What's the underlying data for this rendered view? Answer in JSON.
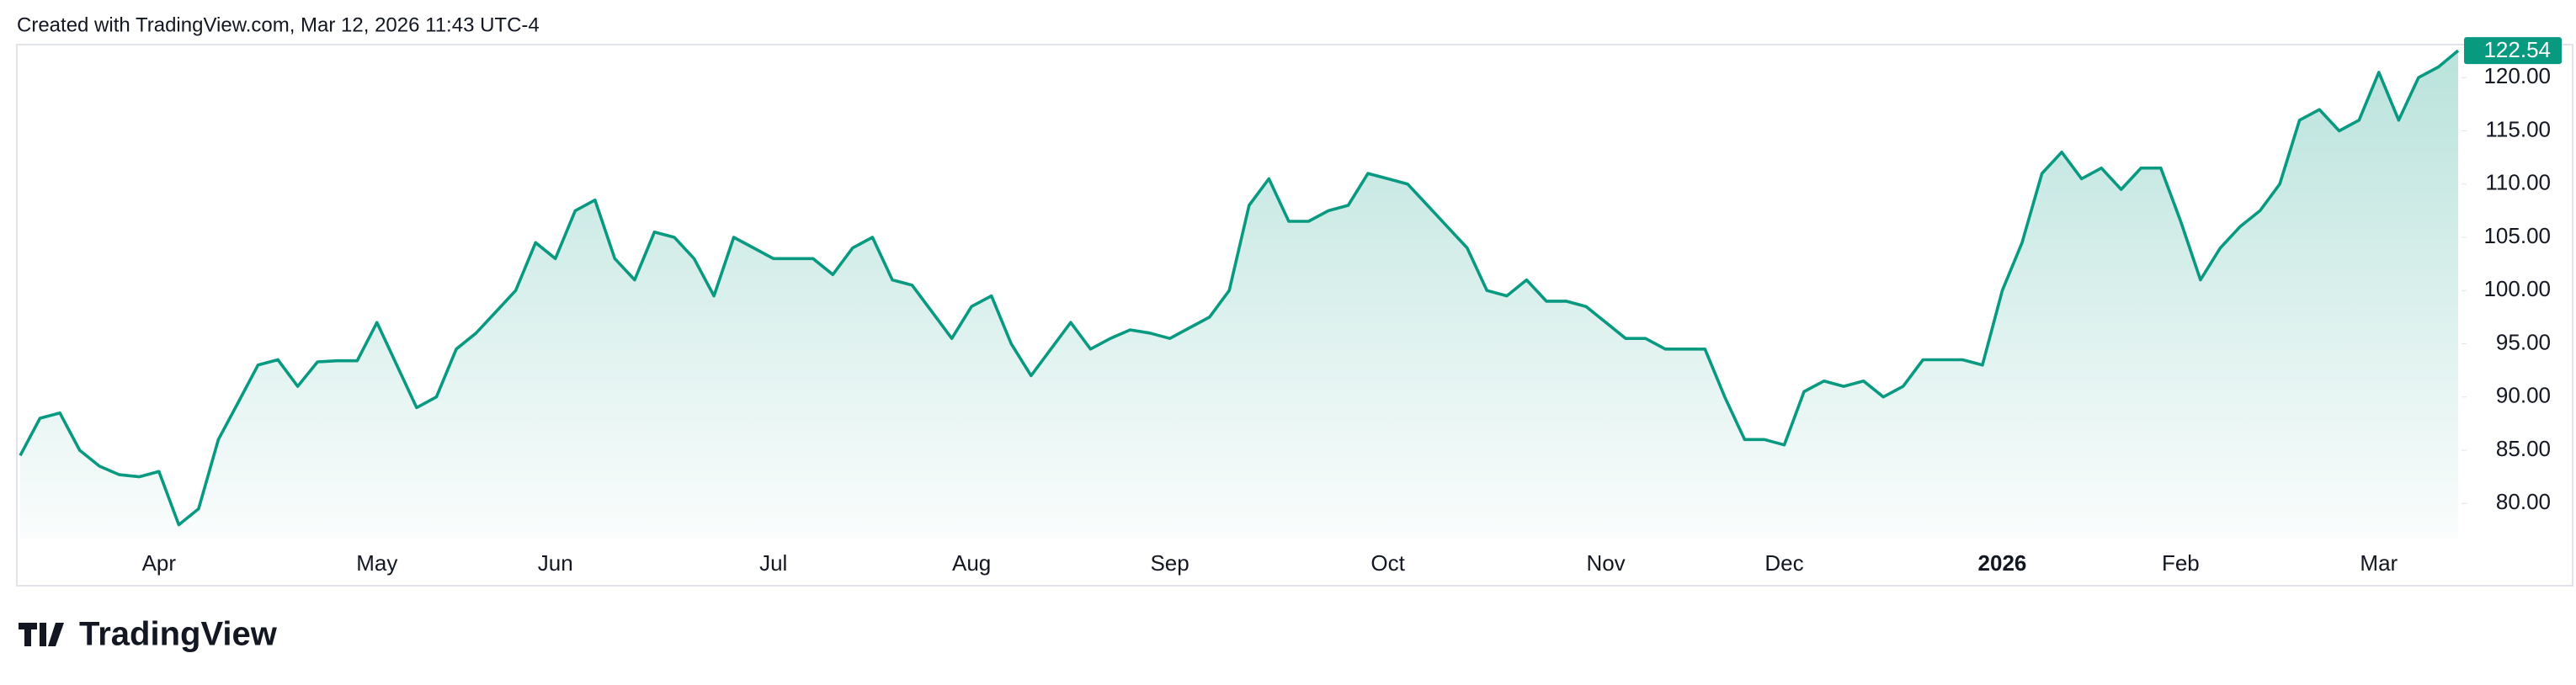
{
  "header": {
    "text": "Created with TradingView.com, Mar 12, 2026 11:43 UTC-4"
  },
  "footer": {
    "brand": "TradingView"
  },
  "chart_data": {
    "type": "area",
    "color": "#089981",
    "grid": false,
    "categories": [
      null,
      null,
      null,
      null,
      null,
      null,
      null,
      "Apr",
      null,
      null,
      null,
      null,
      null,
      null,
      null,
      null,
      null,
      null,
      "May",
      null,
      null,
      null,
      null,
      null,
      null,
      null,
      null,
      "Jun",
      null,
      null,
      null,
      null,
      null,
      null,
      null,
      null,
      null,
      null,
      "Jul",
      null,
      null,
      null,
      null,
      null,
      null,
      null,
      null,
      null,
      "Aug",
      null,
      null,
      null,
      null,
      null,
      null,
      null,
      null,
      null,
      "Sep",
      null,
      null,
      null,
      null,
      null,
      null,
      null,
      null,
      null,
      null,
      "Oct",
      null,
      null,
      null,
      null,
      null,
      null,
      null,
      null,
      null,
      null,
      "Nov",
      null,
      null,
      null,
      null,
      null,
      null,
      null,
      null,
      "Dec",
      null,
      null,
      null,
      null,
      null,
      null,
      null,
      null,
      null,
      null,
      "2026",
      null,
      null,
      null,
      null,
      null,
      null,
      null,
      null,
      "Feb",
      null,
      null,
      null,
      null,
      null,
      null,
      null,
      null,
      null,
      "Mar",
      null,
      null,
      null,
      null
    ],
    "values": [
      84.5,
      88,
      88.5,
      85,
      83.5,
      82.7,
      82.5,
      83,
      78,
      79.5,
      86,
      89.5,
      93,
      93.5,
      91,
      93.3,
      93.4,
      93.4,
      97,
      93,
      89,
      90,
      94.5,
      96,
      98,
      100,
      104.5,
      103,
      107.5,
      108.5,
      103,
      101,
      105.5,
      105,
      103,
      99.5,
      105,
      104,
      103,
      103,
      103,
      101.5,
      104,
      105,
      101,
      100.5,
      98,
      95.5,
      98.5,
      99.5,
      95,
      92,
      94.5,
      97,
      94.5,
      95.5,
      96.3,
      96,
      95.5,
      96.5,
      97.5,
      100,
      108,
      110.5,
      106.5,
      106.5,
      107.5,
      108,
      111,
      110.5,
      110,
      108,
      106,
      104,
      100,
      99.5,
      101,
      99,
      99,
      98.5,
      97,
      95.5,
      95.5,
      94.5,
      94.5,
      94.5,
      90,
      86,
      86,
      85.5,
      90.5,
      91.5,
      91,
      91.5,
      90,
      91,
      93.5,
      93.5,
      93.5,
      93,
      100,
      104.5,
      111,
      113,
      110.5,
      111.5,
      109.5,
      111.5,
      111.5,
      106.5,
      101,
      104,
      106,
      107.5,
      110,
      116,
      117,
      115,
      116,
      120.5,
      116,
      120,
      121,
      122.54
    ],
    "ylim": [
      76.7,
      123.1
    ],
    "yticks": [
      {
        "value": 80,
        "label": "80.00"
      },
      {
        "value": 85,
        "label": "85.00"
      },
      {
        "value": 90,
        "label": "90.00"
      },
      {
        "value": 95,
        "label": "95.00"
      },
      {
        "value": 100,
        "label": "100.00"
      },
      {
        "value": 105,
        "label": "105.00"
      },
      {
        "value": 110,
        "label": "110.00"
      },
      {
        "value": 115,
        "label": "115.00"
      },
      {
        "value": 120,
        "label": "120.00"
      }
    ]
  }
}
